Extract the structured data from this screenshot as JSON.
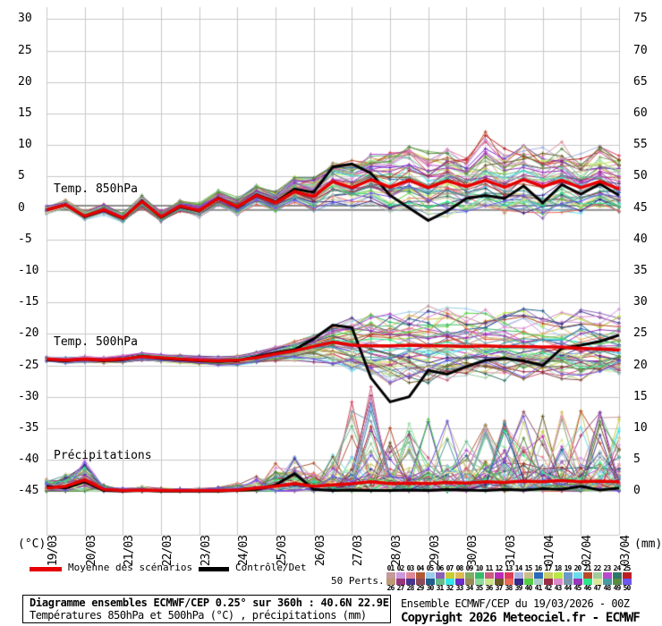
{
  "axes": {
    "left_unit": "(°C)",
    "right_unit": "(mm)",
    "left_ticks": [
      30,
      25,
      20,
      15,
      10,
      5,
      0,
      -5,
      -10,
      -15,
      -20,
      -25,
      -30,
      -35,
      -40,
      -45
    ],
    "right_ticks": [
      75,
      70,
      65,
      60,
      55,
      50,
      45,
      40,
      35,
      30,
      25,
      20,
      15,
      10,
      5,
      0
    ],
    "x_ticks": [
      "19/03",
      "20/03",
      "21/03",
      "22/03",
      "23/03",
      "24/03",
      "25/03",
      "26/03",
      "27/03",
      "28/03",
      "29/03",
      "30/03",
      "31/03",
      "01/04",
      "02/04",
      "03/04"
    ]
  },
  "panels": {
    "t850_label": "Temp. 850hPa",
    "t500_label": "Temp. 500hPa",
    "precip_label": "Précipitations"
  },
  "legend": {
    "mean_label": "Moyenne des scénarios",
    "control_label": "Contrôle/Det",
    "perts_label": "50 Perts.",
    "mean_color": "#e60000",
    "control_color": "#000000"
  },
  "members": {
    "numbers_top": [
      "01",
      "02",
      "03",
      "04",
      "05",
      "06",
      "07",
      "08",
      "09",
      "10",
      "11",
      "12",
      "13",
      "14",
      "15",
      "16",
      "17",
      "18",
      "19",
      "20",
      "21",
      "22",
      "23",
      "24",
      "25"
    ],
    "numbers_bottom": [
      "26",
      "27",
      "28",
      "29",
      "30",
      "31",
      "32",
      "33",
      "34",
      "35",
      "36",
      "37",
      "38",
      "39",
      "40",
      "41",
      "42",
      "43",
      "44",
      "45",
      "46",
      "47",
      "48",
      "49",
      "50"
    ],
    "colors": [
      "#c49a9a",
      "#cc99dd",
      "#e08898",
      "#b05a35",
      "#9cccea",
      "#8d5fb5",
      "#c8cc33",
      "#ddba55",
      "#7fae63",
      "#36bb6a",
      "#cc5b7d",
      "#bb29bb",
      "#de3a5a",
      "#a8b0dd",
      "#cbbc8a",
      "#2a69bb",
      "#c9cc69",
      "#b8e845",
      "#6b9acc",
      "#6cdcea",
      "#bb4a26",
      "#9ccc9c",
      "#ba49cc",
      "#2e7767",
      "#bb1f24",
      "#bb9a76",
      "#9a3579",
      "#48368e",
      "#8e4a57",
      "#235c8c",
      "#67bb89",
      "#35e8e8",
      "#6e2acc",
      "#9a8a55",
      "#8cdc9a",
      "#cce78a",
      "#6b5a26",
      "#ea6a57",
      "#36298a",
      "#57cc45",
      "#abccc8",
      "#992b45",
      "#dc8acc",
      "#7a9aac",
      "#9a36bb",
      "#2ae88a",
      "#dde89a",
      "#4899a3",
      "#578c45",
      "#6e57ea"
    ]
  },
  "footer": {
    "title": "Diagramme ensembles ECMWF/CEP 0.25° sur 360h : 40.6N 22.9E",
    "subtitle": "Températures 850hPa et 500hPa (°C) , précipitations (mm)",
    "run_info": "Ensemble ECMWF/CEP du 19/03/2026 - 00Z",
    "copyright": "Copyright 2026 Meteociel.fr - ECMWF"
  },
  "chart_data": {
    "type": "line",
    "grid": true,
    "x_tick_labels": [
      "19/03",
      "20/03",
      "21/03",
      "22/03",
      "23/03",
      "24/03",
      "25/03",
      "26/03",
      "27/03",
      "28/03",
      "29/03",
      "30/03",
      "31/03",
      "01/04",
      "02/04",
      "03/04"
    ],
    "x_hours": [
      0,
      12,
      24,
      36,
      48,
      60,
      72,
      84,
      96,
      108,
      120,
      132,
      144,
      156,
      168,
      180,
      192,
      204,
      216,
      228,
      240,
      252,
      264,
      276,
      288,
      300,
      312,
      324,
      336,
      348,
      360
    ],
    "ylim_left_degC": [
      -45,
      30
    ],
    "ylim_right_mm": [
      0,
      75
    ],
    "panels": [
      {
        "name": "Temp. 850hPa",
        "unit": "°C",
        "mean": [
          -0.3,
          0.5,
          -1.3,
          -0.3,
          -1.6,
          1.0,
          -1.4,
          0.3,
          -0.4,
          1.5,
          0.2,
          2.0,
          0.8,
          2.6,
          1.8,
          4.2,
          3.2,
          4.5,
          3.3,
          4.4,
          3.2,
          4.3,
          3.4,
          4.4,
          3.3,
          4.5,
          3.4,
          4.4,
          3.2,
          4.2,
          3.0
        ],
        "control": [
          -0.3,
          0.5,
          -1.4,
          -0.4,
          -1.7,
          1.1,
          -1.5,
          0.2,
          -0.5,
          1.6,
          0.1,
          2.1,
          0.9,
          3.0,
          2.5,
          6.5,
          7.0,
          5.5,
          2.0,
          0.0,
          -2.0,
          -0.5,
          1.5,
          2.0,
          1.5,
          3.5,
          0.8,
          3.7,
          2.2,
          3.8,
          2.0
        ],
        "env_min": [
          -1.2,
          -0.4,
          -2.2,
          -1.2,
          -2.6,
          0.0,
          -2.4,
          -0.8,
          -1.5,
          0.3,
          -1.2,
          0.5,
          -0.8,
          0.8,
          -0.5,
          0.5,
          0.0,
          0.5,
          -1.0,
          -0.5,
          -2.0,
          -1.5,
          -1.0,
          -0.5,
          -1.5,
          -1.0,
          -2.0,
          -1.0,
          -1.5,
          -0.5,
          -1.5
        ],
        "env_max": [
          0.4,
          1.3,
          -0.4,
          0.6,
          -0.6,
          2.0,
          -0.4,
          1.3,
          0.8,
          2.8,
          1.8,
          3.8,
          2.8,
          5.0,
          5.0,
          7.5,
          8.0,
          9.0,
          9.5,
          11.0,
          9.0,
          10.0,
          9.5,
          13.0,
          10.0,
          10.5,
          10.0,
          10.5,
          9.5,
          10.5,
          9.5
        ]
      },
      {
        "name": "Temp. 500hPa",
        "unit": "°C",
        "mean": [
          -24.0,
          -24.2,
          -24.0,
          -24.2,
          -24.0,
          -23.6,
          -23.8,
          -24.0,
          -24.2,
          -24.3,
          -24.2,
          -23.8,
          -23.2,
          -22.7,
          -22.0,
          -21.3,
          -21.8,
          -21.9,
          -21.9,
          -21.8,
          -21.9,
          -21.9,
          -22.0,
          -21.9,
          -22.0,
          -22.0,
          -22.1,
          -22.1,
          -22.3,
          -22.4,
          -22.6
        ],
        "control": [
          -24.1,
          -24.3,
          -24.0,
          -24.3,
          -24.1,
          -23.5,
          -23.9,
          -24.1,
          -24.3,
          -24.4,
          -24.3,
          -23.6,
          -23.0,
          -22.5,
          -20.8,
          -18.6,
          -19.0,
          -27.0,
          -30.8,
          -30.0,
          -25.8,
          -26.4,
          -25.2,
          -24.2,
          -23.9,
          -24.3,
          -25.0,
          -22.3,
          -21.8,
          -21.2,
          -20.2
        ],
        "env_min": [
          -24.6,
          -24.8,
          -24.6,
          -24.8,
          -24.7,
          -24.3,
          -24.5,
          -24.7,
          -24.9,
          -25.0,
          -25.0,
          -24.8,
          -24.5,
          -24.3,
          -24.5,
          -25.0,
          -26.0,
          -27.5,
          -28.5,
          -28.0,
          -28.0,
          -27.8,
          -27.5,
          -27.0,
          -27.5,
          -27.2,
          -27.0,
          -27.3,
          -27.5,
          -27.2,
          -27.0
        ],
        "env_max": [
          -23.4,
          -23.6,
          -23.4,
          -23.6,
          -23.3,
          -22.9,
          -23.1,
          -23.3,
          -23.5,
          -23.6,
          -23.4,
          -22.8,
          -21.8,
          -21.0,
          -19.5,
          -18.0,
          -17.0,
          -16.5,
          -16.5,
          -16.0,
          -15.5,
          -15.5,
          -15.5,
          -15.8,
          -15.5,
          -16.0,
          -16.0,
          -15.8,
          -15.5,
          -15.8,
          -16.0
        ]
      },
      {
        "name": "Précipitations",
        "unit": "mm",
        "mean": [
          0.5,
          0.8,
          1.8,
          0.3,
          0.1,
          0.2,
          0.1,
          0.1,
          0.1,
          0.1,
          0.2,
          0.5,
          0.8,
          1.2,
          0.8,
          1.0,
          1.2,
          1.5,
          1.2,
          1.3,
          1.2,
          1.4,
          1.3,
          1.5,
          1.4,
          1.6,
          1.5,
          1.7,
          1.5,
          1.6,
          1.5
        ],
        "control": [
          0.8,
          0.5,
          1.5,
          0.1,
          0.0,
          0.1,
          0.0,
          0.0,
          0.0,
          0.0,
          0.1,
          0.3,
          1.0,
          2.8,
          0.3,
          0.1,
          0.2,
          0.1,
          0.1,
          0.2,
          0.1,
          0.3,
          0.2,
          0.1,
          0.3,
          0.2,
          0.4,
          0.3,
          0.8,
          0.2,
          0.5
        ],
        "env_max": [
          2.0,
          3.0,
          5.0,
          1.0,
          0.5,
          0.8,
          0.5,
          0.4,
          0.5,
          0.6,
          1.5,
          2.5,
          4.5,
          5.5,
          5.0,
          6.0,
          15.0,
          17.0,
          12.0,
          13.0,
          12.0,
          13.0,
          10.0,
          11.0,
          12.0,
          13.0,
          12.0,
          14.0,
          13.0,
          14.0,
          12.0
        ]
      }
    ],
    "series_styles": {
      "mean": {
        "color": "#e60000",
        "width": 3.5
      },
      "control": {
        "color": "#000000",
        "width": 3
      },
      "members": {
        "width": 1
      }
    }
  }
}
